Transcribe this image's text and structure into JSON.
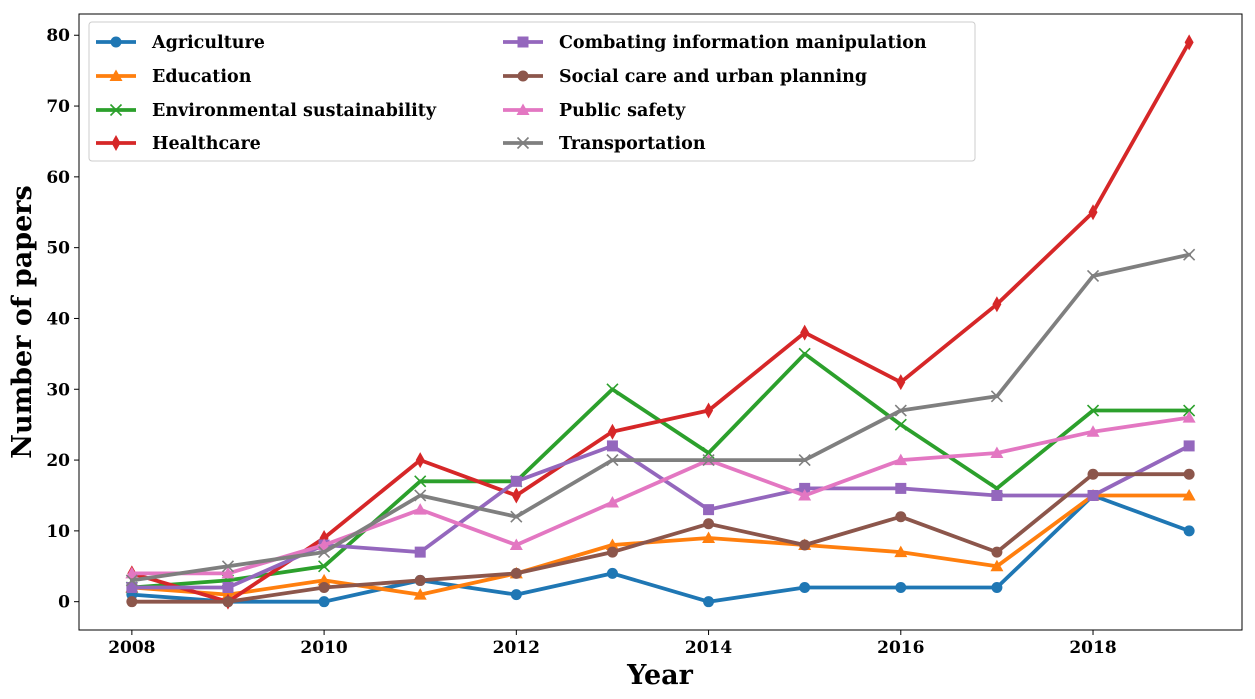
{
  "chart_data": {
    "type": "line",
    "title": "",
    "xlabel": "Year",
    "ylabel": "Number of papers",
    "x": [
      2008,
      2009,
      2010,
      2011,
      2012,
      2013,
      2014,
      2015,
      2016,
      2017,
      2018,
      2019
    ],
    "xticks": [
      2008,
      2010,
      2012,
      2014,
      2016,
      2018
    ],
    "yticks": [
      0,
      10,
      20,
      30,
      40,
      50,
      60,
      70,
      80
    ],
    "xlim": [
      2007.45,
      2019.55
    ],
    "ylim": [
      -4,
      83
    ],
    "grid": false,
    "legend_position": "top-left",
    "legend_columns": 2,
    "series": [
      {
        "name": "Agriculture",
        "color": "#1f77b4",
        "marker": "circle",
        "values": [
          1,
          0,
          0,
          3,
          1,
          4,
          0,
          2,
          2,
          2,
          15,
          10
        ]
      },
      {
        "name": "Education",
        "color": "#ff7f0e",
        "marker": "triangle",
        "values": [
          2,
          1,
          3,
          1,
          4,
          8,
          9,
          8,
          7,
          5,
          15,
          15
        ]
      },
      {
        "name": "Environmental sustainability",
        "color": "#2ca02c",
        "marker": "x",
        "values": [
          2,
          3,
          5,
          17,
          17,
          30,
          21,
          35,
          25,
          16,
          27,
          27
        ]
      },
      {
        "name": "Healthcare",
        "color": "#d62728",
        "marker": "thin-diamond",
        "values": [
          4,
          0,
          9,
          20,
          15,
          24,
          27,
          38,
          31,
          42,
          55,
          79
        ]
      },
      {
        "name": "Combating information manipulation",
        "color": "#9467bd",
        "marker": "square",
        "values": [
          2,
          2,
          8,
          7,
          17,
          22,
          13,
          16,
          16,
          15,
          15,
          22
        ]
      },
      {
        "name": "Social care and urban planning",
        "color": "#8c564b",
        "marker": "circle",
        "values": [
          0,
          0,
          2,
          3,
          4,
          7,
          11,
          8,
          12,
          7,
          18,
          18
        ]
      },
      {
        "name": "Public safety",
        "color": "#e377c2",
        "marker": "triangle",
        "values": [
          4,
          4,
          8,
          13,
          8,
          14,
          20,
          15,
          20,
          21,
          24,
          26
        ]
      },
      {
        "name": "Transportation",
        "color": "#7f7f7f",
        "marker": "x",
        "values": [
          3,
          5,
          7,
          15,
          12,
          20,
          20,
          20,
          27,
          29,
          46,
          49
        ]
      }
    ]
  }
}
